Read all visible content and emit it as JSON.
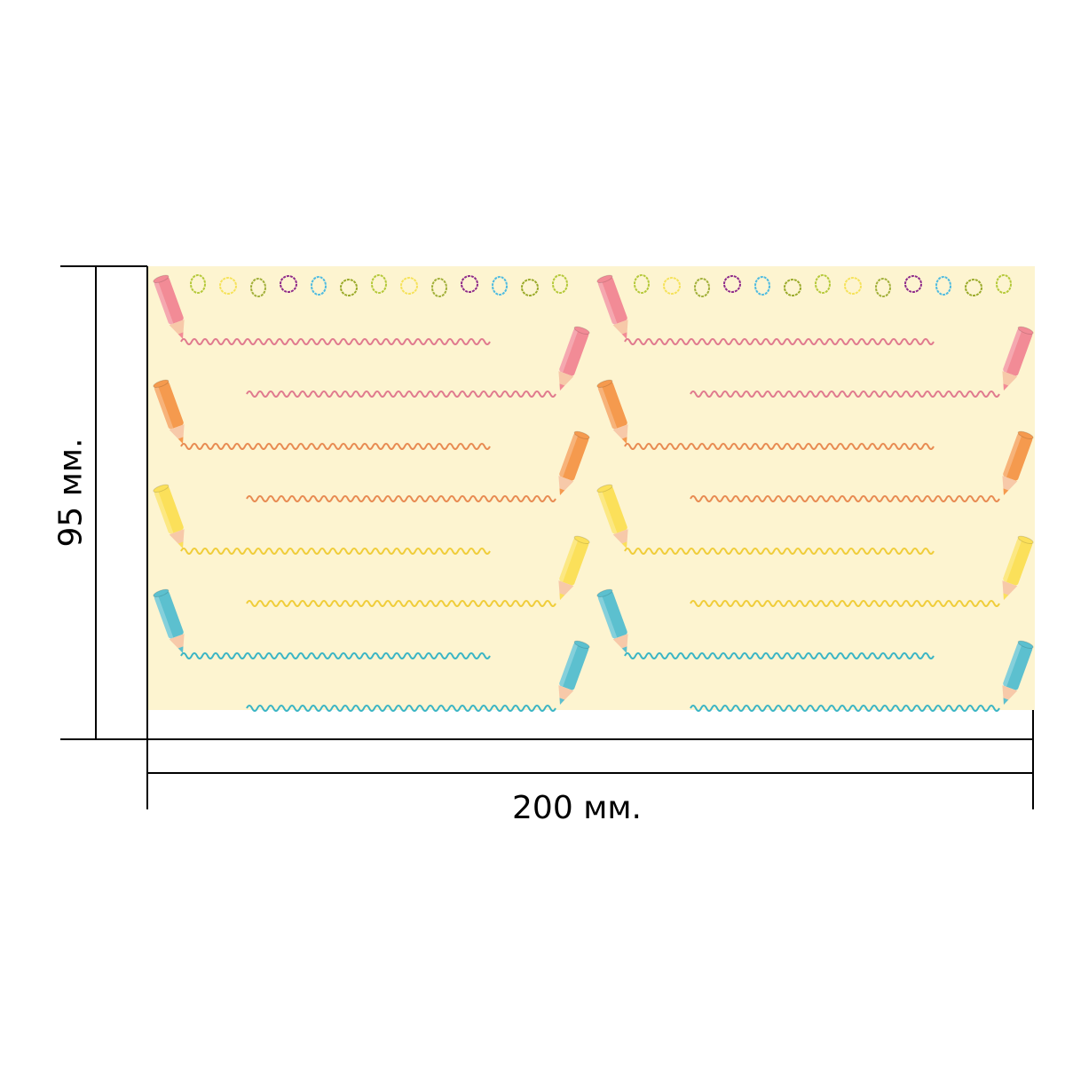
{
  "dimensions": {
    "width_label": "200 мм.",
    "height_label": "95 мм."
  },
  "artwork": {
    "background_color": "#fdf4d0",
    "rows": [
      {
        "name": "pink",
        "pencil_color": "#f28b96",
        "line_color": "#e07a8e"
      },
      {
        "name": "orange",
        "pencil_color": "#f59a4e",
        "line_color": "#e88b52"
      },
      {
        "name": "yellow",
        "pencil_color": "#fbe05a",
        "line_color": "#f0cd3a"
      },
      {
        "name": "blue",
        "pencil_color": "#5cc0cf",
        "line_color": "#3bb5c4"
      }
    ],
    "doodle_colors": [
      "#b5c93a",
      "#f5e25a",
      "#a2b03a",
      "#8e2a8a",
      "#4fbbe0",
      "#9aaa2a"
    ],
    "repeat_count": 2
  }
}
